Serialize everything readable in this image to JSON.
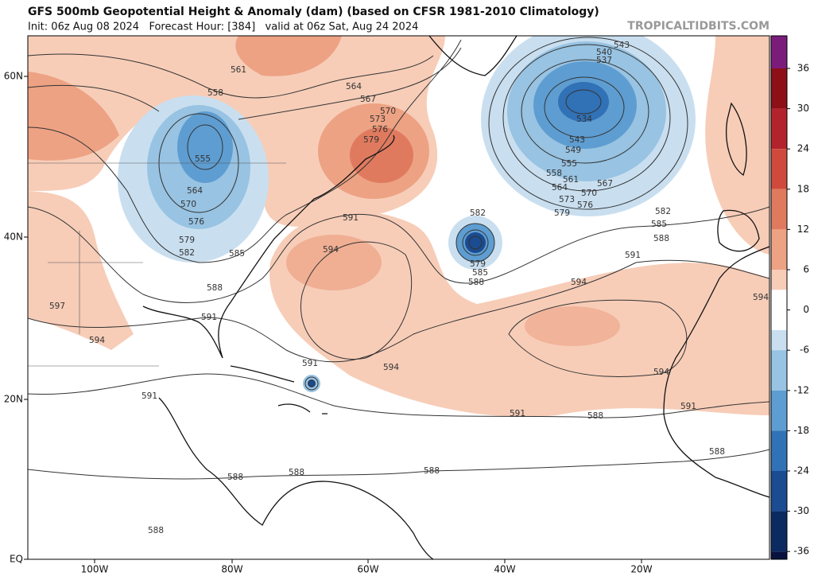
{
  "header": {
    "title": "GFS 500mb Geopotential Height & Anomaly (dam) (based on CFSR 1981-2010 Climatology)",
    "subtitle": "Init: 06z Aug 08 2024   Forecast Hour: [384]   valid at 06z Sat, Aug 24 2024",
    "site": "TROPICALTIDBITS.COM"
  },
  "lat_labels": [
    "60N",
    "40N",
    "20N",
    "EQ"
  ],
  "lon_labels": [
    "100W",
    "80W",
    "60W",
    "40W",
    "20W"
  ],
  "colorbar": {
    "labels": [
      "36",
      "30",
      "24",
      "18",
      "12",
      "6",
      "0",
      "-6",
      "-12",
      "-18",
      "-24",
      "-30",
      "-36"
    ],
    "colors": [
      "#7b1c7b",
      "#8c1016",
      "#b3232c",
      "#cf4a3c",
      "#e07a5f",
      "#eda283",
      "#f7cdb8",
      "#c9dff0",
      "#98c3e2",
      "#5e9dd1",
      "#3171b6",
      "#1b4b90",
      "#0c2a62",
      "#08123f"
    ]
  },
  "contour_labels": [
    "561",
    "558",
    "555",
    "564",
    "570",
    "576",
    "579",
    "582",
    "585",
    "588",
    "591",
    "594",
    "597",
    "591",
    "588",
    "588",
    "588",
    "591",
    "594",
    "591",
    "588",
    "588",
    "594",
    "591",
    "579",
    "576",
    "573",
    "570",
    "567",
    "564",
    "582",
    "579",
    "585",
    "588",
    "594",
    "591",
    "594",
    "594",
    "591",
    "588",
    "588",
    "585",
    "582",
    "579",
    "576",
    "573",
    "570",
    "567",
    "564",
    "561",
    "558",
    "555",
    "549",
    "543",
    "534",
    "537",
    "540",
    "543"
  ]
}
